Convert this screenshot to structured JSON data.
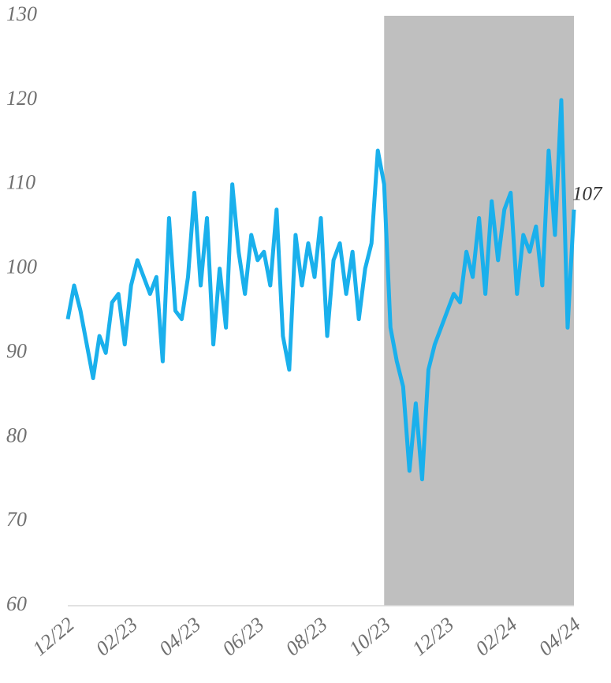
{
  "chart_data": {
    "type": "line",
    "categories": [
      "12/22",
      null,
      null,
      null,
      null,
      null,
      null,
      null,
      null,
      null,
      "02/23",
      null,
      null,
      null,
      null,
      null,
      null,
      null,
      null,
      null,
      "04/23",
      null,
      null,
      null,
      null,
      null,
      null,
      null,
      null,
      null,
      "06/23",
      null,
      null,
      null,
      null,
      null,
      null,
      null,
      null,
      null,
      "08/23",
      null,
      null,
      null,
      null,
      null,
      null,
      null,
      null,
      null,
      "10/23",
      null,
      null,
      null,
      null,
      null,
      null,
      null,
      null,
      null,
      "12/23",
      null,
      null,
      null,
      null,
      null,
      null,
      null,
      null,
      null,
      "02/24",
      null,
      null,
      null,
      null,
      null,
      null,
      null,
      null,
      null,
      "04/24"
    ],
    "series": [
      {
        "name": null,
        "color": "#1ab0ec",
        "values": [
          94,
          98,
          95,
          91,
          87,
          92,
          90,
          96,
          97,
          91,
          98,
          101,
          99,
          97,
          99,
          89,
          106,
          95,
          94,
          99,
          109,
          98,
          106,
          91,
          100,
          93,
          110,
          102,
          97,
          104,
          101,
          102,
          98,
          107,
          92,
          88,
          104,
          98,
          103,
          99,
          106,
          92,
          101,
          103,
          97,
          102,
          94,
          100,
          103,
          114,
          110,
          93,
          89,
          86,
          76,
          84,
          75,
          88,
          91,
          93,
          95,
          97,
          96,
          102,
          99,
          106,
          97,
          108,
          101,
          107,
          109,
          97,
          104,
          102,
          105,
          98,
          114,
          104,
          120,
          93,
          107
        ]
      }
    ],
    "end_label": "107",
    "shade": {
      "from": "10/23",
      "to": "04/24",
      "color": "#bfbfbf"
    },
    "ylim": [
      60,
      130
    ],
    "yticks": [
      60,
      70,
      80,
      90,
      100,
      110,
      120,
      130
    ],
    "grid": false
  }
}
